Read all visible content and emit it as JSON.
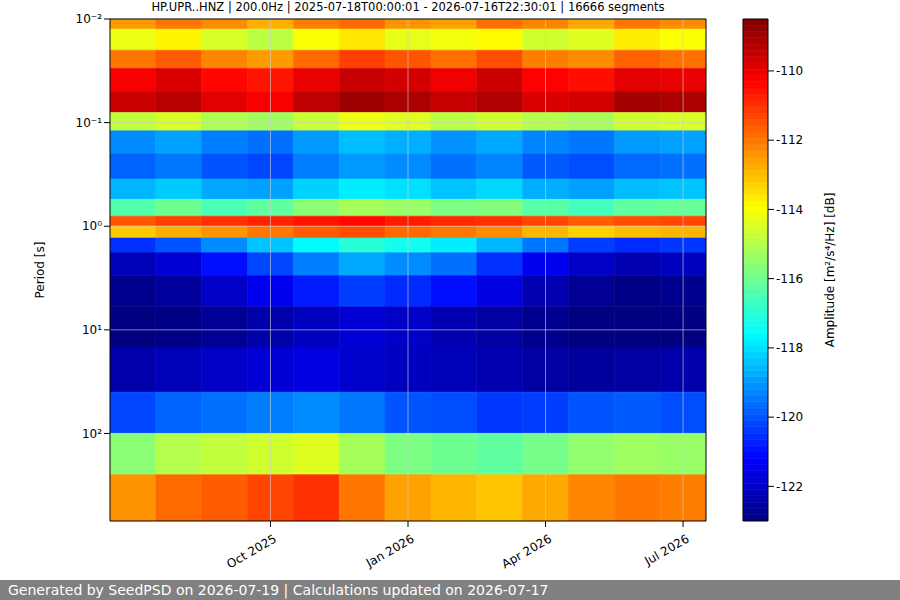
{
  "chart_data": {
    "type": "heatmap",
    "title": "HP.UPR..HNZ | 200.0Hz | 2025-07-18T00:00:01 - 2026-07-16T22:30:01 | 16666 segments",
    "footer": "Generated by SeedPSD on 2026-07-19 | Calculations updated on 2026-07-17",
    "y_label": "Period [s]",
    "x": [
      "2025-07",
      "2025-08",
      "2025-09",
      "2025-10",
      "2025-11",
      "2025-12",
      "2026-01",
      "2026-02",
      "2026-03",
      "2026-04",
      "2026-05",
      "2026-06",
      "2026-07"
    ],
    "xticks": [
      {
        "value": "2025-10",
        "label": "Oct 2025"
      },
      {
        "value": "2026-01",
        "label": "Jan 2026"
      },
      {
        "value": "2026-04",
        "label": "Apr 2026"
      },
      {
        "value": "2026-07",
        "label": "Jul 2026"
      }
    ],
    "log": "y",
    "ylim": [
      0.01,
      700
    ],
    "yticks": [
      {
        "value": 0.01,
        "label": "10⁻²"
      },
      {
        "value": 0.1,
        "label": "10⁻¹"
      },
      {
        "value": 1,
        "label": "10⁰"
      },
      {
        "value": 10,
        "label": "10¹"
      },
      {
        "value": 100,
        "label": "10²"
      }
    ],
    "grid": true,
    "period_edges": [
      0.01,
      0.0125,
      0.02,
      0.03,
      0.05,
      0.08,
      0.12,
      0.2,
      0.35,
      0.55,
      0.8,
      1.0,
      1.3,
      1.8,
      3,
      6,
      15,
      40,
      100,
      250,
      700
    ],
    "cells": [
      [
        -112.5,
        -112.0,
        -112.3,
        -112.8,
        -112.1,
        -111.8,
        -112.4,
        -112.6,
        -111.9,
        -112.2,
        -112.7,
        -112.0,
        -112.3
      ],
      [
        -114.2,
        -113.8,
        -114.5,
        -114.9,
        -114.0,
        -113.6,
        -114.3,
        -114.1,
        -113.9,
        -114.6,
        -114.4,
        -113.7,
        -114.0
      ],
      [
        -112.0,
        -111.6,
        -112.2,
        -112.5,
        -111.8,
        -111.2,
        -111.5,
        -111.9,
        -111.4,
        -112.1,
        -112.3,
        -111.7,
        -111.9
      ],
      [
        -110.2,
        -109.8,
        -110.4,
        -110.6,
        -110.0,
        -109.5,
        -109.7,
        -110.1,
        -109.6,
        -110.3,
        -110.5,
        -109.9,
        -110.0
      ],
      [
        -109.6,
        -109.3,
        -109.9,
        -110.2,
        -109.4,
        -108.9,
        -109.1,
        -109.5,
        -109.2,
        -109.8,
        -109.7,
        -109.0,
        -109.1
      ],
      [
        -114.8,
        -114.5,
        -115.1,
        -115.3,
        -114.7,
        -114.2,
        -114.4,
        -114.9,
        -114.6,
        -115.0,
        -115.2,
        -114.6,
        -114.5
      ],
      [
        -119.2,
        -118.9,
        -119.4,
        -119.6,
        -119.0,
        -118.5,
        -118.7,
        -119.1,
        -118.8,
        -119.3,
        -119.5,
        -119.0,
        -118.9
      ],
      [
        -119.8,
        -119.5,
        -120.0,
        -120.2,
        -119.4,
        -119.0,
        -119.2,
        -119.6,
        -119.3,
        -119.9,
        -120.1,
        -119.7,
        -119.6
      ],
      [
        -118.6,
        -118.3,
        -118.8,
        -118.9,
        -118.2,
        -117.8,
        -118.0,
        -118.4,
        -118.1,
        -118.7,
        -118.9,
        -118.5,
        -118.4
      ],
      [
        -116.4,
        -116.0,
        -116.5,
        -116.2,
        -115.6,
        -115.2,
        -115.4,
        -115.8,
        -115.7,
        -116.3,
        -116.6,
        -116.2,
        -116.1
      ],
      [
        -111.5,
        -111.2,
        -111.0,
        -110.8,
        -110.6,
        -110.4,
        -110.7,
        -110.9,
        -111.0,
        -111.3,
        -111.6,
        -111.4,
        -111.3
      ],
      [
        -113.2,
        -112.8,
        -112.4,
        -112.0,
        -111.6,
        -111.4,
        -111.8,
        -112.0,
        -112.3,
        -112.9,
        -113.3,
        -113.0,
        -112.9
      ],
      [
        -120.5,
        -120.0,
        -119.2,
        -118.4,
        -117.6,
        -117.0,
        -117.3,
        -117.8,
        -118.6,
        -119.5,
        -120.3,
        -120.6,
        -120.4
      ],
      [
        -122.2,
        -121.8,
        -121.0,
        -120.2,
        -119.4,
        -118.8,
        -119.2,
        -119.6,
        -120.5,
        -121.4,
        -122.0,
        -122.3,
        -122.1
      ],
      [
        -122.8,
        -122.6,
        -122.0,
        -121.4,
        -120.8,
        -120.3,
        -120.6,
        -121.0,
        -121.6,
        -122.3,
        -122.7,
        -122.9,
        -122.8
      ],
      [
        -123.0,
        -122.9,
        -122.7,
        -122.4,
        -122.1,
        -121.8,
        -122.0,
        -122.3,
        -122.5,
        -122.8,
        -123.0,
        -123.0,
        -123.0
      ],
      [
        -122.4,
        -122.2,
        -122.0,
        -121.8,
        -121.6,
        -121.9,
        -122.1,
        -122.2,
        -122.3,
        -122.5,
        -122.6,
        -122.5,
        -122.4
      ],
      [
        -120.2,
        -119.8,
        -119.6,
        -119.4,
        -119.2,
        -119.5,
        -120.0,
        -120.1,
        -120.4,
        -120.3,
        -120.0,
        -119.9,
        -120.1
      ],
      [
        -115.6,
        -115.0,
        -114.8,
        -114.6,
        -114.4,
        -115.2,
        -115.8,
        -116.0,
        -116.2,
        -115.9,
        -115.5,
        -115.3,
        -115.4
      ],
      [
        -112.4,
        -111.8,
        -111.6,
        -111.3,
        -111.0,
        -112.0,
        -112.6,
        -112.9,
        -113.1,
        -112.7,
        -112.2,
        -112.0,
        -112.1
      ]
    ],
    "colorbar": {
      "label": "Amplitude [m²/s⁴/Hz] [dB]",
      "range": [
        -123,
        -108.5
      ],
      "ticks": [
        -110,
        -112,
        -114,
        -116,
        -118,
        -120,
        -122
      ]
    }
  }
}
